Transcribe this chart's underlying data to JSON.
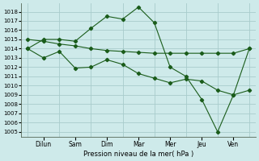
{
  "xlabel": "Pression niveau de la mer( hPa )",
  "yticks": [
    1005,
    1006,
    1007,
    1008,
    1009,
    1010,
    1011,
    1012,
    1013,
    1014,
    1015,
    1016,
    1017,
    1018
  ],
  "ylim": [
    1004.5,
    1018.9
  ],
  "xlim": [
    -0.2,
    7.2
  ],
  "background_color": "#ceeaea",
  "grid_color": "#a8cccc",
  "line_color": "#1a5c1a",
  "day_labels": [
    "Dilun",
    "Sam",
    "Dim",
    "Mar",
    "Mer",
    "Jeu",
    "Ven"
  ],
  "day_positions": [
    0.5,
    1.5,
    2.5,
    3.5,
    4.5,
    5.5,
    6.5
  ],
  "vline_positions": [
    0,
    1,
    2,
    3,
    4,
    5,
    6,
    7
  ],
  "line1_x": [
    0,
    0.5,
    1.0,
    1.5,
    2.0,
    2.5,
    3.0,
    3.5,
    4.0,
    4.5,
    5.0,
    5.5,
    6.0,
    6.5,
    7.0
  ],
  "line1_y": [
    1014.0,
    1015.0,
    1015.0,
    1014.8,
    1016.2,
    1017.5,
    1017.2,
    1018.5,
    1016.8,
    1012.0,
    1011.0,
    1008.5,
    1005.0,
    1009.0,
    1014.0
  ],
  "line2_x": [
    0,
    0.5,
    1.0,
    1.5,
    2.0,
    2.5,
    3.0,
    3.5,
    4.0,
    4.5,
    5.0,
    5.5,
    6.0,
    6.5,
    7.0
  ],
  "line2_y": [
    1015.0,
    1014.8,
    1014.5,
    1014.3,
    1014.0,
    1013.8,
    1013.7,
    1013.6,
    1013.5,
    1013.5,
    1013.5,
    1013.5,
    1013.5,
    1013.5,
    1014.0
  ],
  "line3_x": [
    0,
    0.5,
    1.0,
    1.5,
    2.0,
    2.5,
    3.0,
    3.5,
    4.0,
    4.5,
    5.0,
    5.5,
    6.0,
    6.5,
    7.0
  ],
  "line3_y": [
    1014.0,
    1013.0,
    1013.7,
    1011.9,
    1012.0,
    1012.8,
    1012.3,
    1011.3,
    1010.8,
    1010.3,
    1010.7,
    1010.5,
    1009.5,
    1009.0,
    1009.5
  ]
}
